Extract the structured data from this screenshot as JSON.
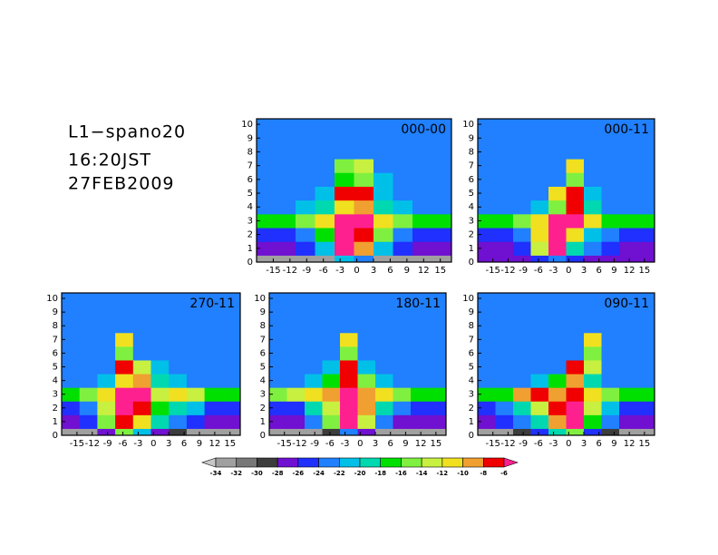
{
  "header": {
    "station": "L1−spano20",
    "time": "16:20JST",
    "date": "27FEB2009"
  },
  "colorbar": {
    "levels": [
      -34,
      -32,
      -30,
      -28,
      -26,
      -24,
      -22,
      -20,
      -18,
      -16,
      -14,
      -12,
      -10,
      -8,
      -6
    ],
    "colors": [
      "#c8c8c8",
      "#a0a0a0",
      "#787878",
      "#3c3c3c",
      "#7010d0",
      "#2030ff",
      "#2080ff",
      "#00c0e8",
      "#00d8b0",
      "#00e000",
      "#80f040",
      "#c8f040",
      "#f0e020",
      "#f0a030",
      "#f00000",
      "#ff2090"
    ]
  },
  "chart_data": [
    {
      "type": "heatmap",
      "title": "000-00",
      "xlim": [
        -18,
        17
      ],
      "ylim": [
        0,
        10.4
      ],
      "xticks": [
        -15,
        -12,
        -9,
        -6,
        -3,
        0,
        3,
        6,
        9,
        12,
        15
      ],
      "yticks": [
        0,
        1,
        2,
        3,
        4,
        5,
        6,
        7,
        8,
        9,
        10
      ],
      "xbins": [
        -18,
        -14.5,
        -11,
        -7.5,
        -4,
        -0.5,
        3,
        6.5,
        10,
        13.5,
        17
      ],
      "ybins": [
        0,
        0.5,
        1.5,
        2.5,
        3.5,
        4.5,
        5.5,
        6.5,
        7.5,
        10.4
      ],
      "z": [
        [
          -33,
          -33,
          -33,
          -33,
          -22,
          -24,
          -33,
          -33,
          -33,
          -33
        ],
        [
          -27,
          -27,
          -26,
          -22,
          -6,
          -10,
          -22,
          -26,
          -27,
          -27
        ],
        [
          -26,
          -26,
          -24,
          -18,
          -5,
          -8,
          -16,
          -24,
          -26,
          -26
        ],
        [
          -18,
          -18,
          -16,
          -12,
          -5,
          -6,
          -12,
          -16,
          -18,
          -18
        ],
        [
          -23,
          -23,
          -22,
          -20,
          -12,
          -10,
          -20,
          -22,
          -23,
          -23
        ],
        [
          -23,
          -23,
          -23,
          -22,
          -8,
          -7,
          -22,
          -23,
          -23,
          -23
        ],
        [
          -23,
          -23,
          -23,
          -23,
          -18,
          -16,
          -22,
          -23,
          -23,
          -23
        ],
        [
          -23,
          -23,
          -23,
          -23,
          -16,
          -14,
          -23,
          -23,
          -23,
          -23
        ],
        [
          -23,
          -23,
          -23,
          -23,
          -23,
          -23,
          -23,
          -23,
          -23,
          -23
        ]
      ]
    },
    {
      "type": "heatmap",
      "title": "000-11",
      "xlim": [
        -18,
        17
      ],
      "ylim": [
        0,
        10.4
      ],
      "xticks": [
        -15,
        -12,
        -9,
        -6,
        -3,
        0,
        3,
        6,
        9,
        12,
        15
      ],
      "yticks": [
        0,
        1,
        2,
        3,
        4,
        5,
        6,
        7,
        8,
        9,
        10
      ],
      "xbins": [
        -18,
        -14.5,
        -11,
        -7.5,
        -4,
        -0.5,
        3,
        6.5,
        10,
        13.5,
        17
      ],
      "ybins": [
        0,
        0.5,
        1.5,
        2.5,
        3.5,
        4.5,
        5.5,
        6.5,
        7.5,
        10.4
      ],
      "z": [
        [
          -28,
          -28,
          -28,
          -26,
          -24,
          -26,
          -28,
          -28,
          -28,
          -28
        ],
        [
          -27,
          -27,
          -26,
          -14,
          -6,
          -20,
          -24,
          -26,
          -27,
          -27
        ],
        [
          -26,
          -26,
          -24,
          -12,
          -6,
          -12,
          -22,
          -24,
          -26,
          -26
        ],
        [
          -18,
          -18,
          -16,
          -12,
          -6,
          -6,
          -12,
          -18,
          -18,
          -18
        ],
        [
          -23,
          -23,
          -23,
          -22,
          -16,
          -8,
          -20,
          -23,
          -23,
          -23
        ],
        [
          -23,
          -23,
          -23,
          -23,
          -12,
          -7,
          -22,
          -23,
          -23,
          -23
        ],
        [
          -23,
          -23,
          -23,
          -23,
          -23,
          -16,
          -23,
          -23,
          -23,
          -23
        ],
        [
          -23,
          -23,
          -23,
          -23,
          -23,
          -12,
          -23,
          -23,
          -23,
          -23
        ],
        [
          -23,
          -23,
          -23,
          -23,
          -23,
          -23,
          -23,
          -23,
          -23,
          -23
        ]
      ]
    },
    {
      "type": "heatmap",
      "title": "270-11",
      "xlim": [
        -18,
        17
      ],
      "ylim": [
        0,
        10.4
      ],
      "xticks": [
        -15,
        -12,
        -9,
        -6,
        -3,
        0,
        3,
        6,
        9,
        12,
        15
      ],
      "yticks": [
        0,
        1,
        2,
        3,
        4,
        5,
        6,
        7,
        8,
        9,
        10
      ],
      "xbins": [
        -18,
        -14.5,
        -11,
        -7.5,
        -4,
        -0.5,
        3,
        6.5,
        10,
        13.5,
        17
      ],
      "ybins": [
        0,
        0.5,
        1.5,
        2.5,
        3.5,
        4.5,
        5.5,
        6.5,
        7.5,
        10.4
      ],
      "z": [
        [
          -33,
          -33,
          -28,
          -16,
          -22,
          -28,
          -30,
          -33,
          -33,
          -33
        ],
        [
          -27,
          -26,
          -16,
          -7,
          -12,
          -20,
          -24,
          -26,
          -27,
          -27
        ],
        [
          -26,
          -24,
          -14,
          -6,
          -8,
          -18,
          -20,
          -22,
          -26,
          -26
        ],
        [
          -18,
          -16,
          -12,
          -6,
          -6,
          -14,
          -12,
          -14,
          -18,
          -18
        ],
        [
          -23,
          -23,
          -22,
          -12,
          -10,
          -20,
          -22,
          -23,
          -23,
          -23
        ],
        [
          -23,
          -23,
          -23,
          -7,
          -14,
          -22,
          -23,
          -23,
          -23,
          -23
        ],
        [
          -23,
          -23,
          -23,
          -16,
          -23,
          -23,
          -23,
          -23,
          -23,
          -23
        ],
        [
          -23,
          -23,
          -23,
          -12,
          -23,
          -23,
          -23,
          -23,
          -23,
          -23
        ],
        [
          -23,
          -23,
          -23,
          -23,
          -23,
          -23,
          -23,
          -23,
          -23,
          -23
        ]
      ]
    },
    {
      "type": "heatmap",
      "title": "180-11",
      "xlim": [
        -18,
        17
      ],
      "ylim": [
        0,
        10.4
      ],
      "xticks": [
        -15,
        -12,
        -9,
        -6,
        -3,
        0,
        3,
        6,
        9,
        12,
        15
      ],
      "yticks": [
        0,
        1,
        2,
        3,
        4,
        5,
        6,
        7,
        8,
        9,
        10
      ],
      "xbins": [
        -18,
        -14.5,
        -11,
        -7.5,
        -4,
        -0.5,
        3,
        6.5,
        10,
        13.5,
        17
      ],
      "ybins": [
        0,
        0.5,
        1.5,
        2.5,
        3.5,
        4.5,
        5.5,
        6.5,
        7.5,
        10.4
      ],
      "z": [
        [
          -33,
          -33,
          -33,
          -30,
          -24,
          -28,
          -33,
          -33,
          -33,
          -33
        ],
        [
          -27,
          -27,
          -24,
          -16,
          -6,
          -14,
          -24,
          -27,
          -27,
          -27
        ],
        [
          -26,
          -26,
          -20,
          -14,
          -6,
          -10,
          -20,
          -24,
          -26,
          -26
        ],
        [
          -16,
          -14,
          -12,
          -10,
          -6,
          -10,
          -12,
          -16,
          -18,
          -18
        ],
        [
          -23,
          -23,
          -22,
          -18,
          -8,
          -16,
          -22,
          -23,
          -23,
          -23
        ],
        [
          -23,
          -23,
          -23,
          -22,
          -7,
          -22,
          -23,
          -23,
          -23,
          -23
        ],
        [
          -23,
          -23,
          -23,
          -23,
          -16,
          -23,
          -23,
          -23,
          -23,
          -23
        ],
        [
          -23,
          -23,
          -23,
          -23,
          -12,
          -23,
          -23,
          -23,
          -23,
          -23
        ],
        [
          -23,
          -23,
          -23,
          -23,
          -23,
          -23,
          -23,
          -23,
          -23,
          -23
        ]
      ]
    },
    {
      "type": "heatmap",
      "title": "090-11",
      "xlim": [
        -18,
        17
      ],
      "ylim": [
        0,
        10.4
      ],
      "xticks": [
        -15,
        -12,
        -9,
        -6,
        -3,
        0,
        3,
        6,
        9,
        12,
        15
      ],
      "yticks": [
        0,
        1,
        2,
        3,
        4,
        5,
        6,
        7,
        8,
        9,
        10
      ],
      "xbins": [
        -18,
        -14.5,
        -11,
        -7.5,
        -4,
        -0.5,
        3,
        6.5,
        10,
        13.5,
        17
      ],
      "ybins": [
        0,
        0.5,
        1.5,
        2.5,
        3.5,
        4.5,
        5.5,
        6.5,
        7.5,
        10.4
      ],
      "z": [
        [
          -33,
          -33,
          -30,
          -26,
          -20,
          -16,
          -26,
          -30,
          -33,
          -33
        ],
        [
          -27,
          -26,
          -24,
          -20,
          -10,
          -6,
          -18,
          -24,
          -27,
          -27
        ],
        [
          -26,
          -24,
          -20,
          -14,
          -8,
          -6,
          -14,
          -22,
          -26,
          -26
        ],
        [
          -18,
          -18,
          -10,
          -8,
          -10,
          -8,
          -12,
          -16,
          -18,
          -18
        ],
        [
          -23,
          -23,
          -23,
          -22,
          -18,
          -10,
          -20,
          -23,
          -23,
          -23
        ],
        [
          -23,
          -23,
          -23,
          -23,
          -23,
          -7,
          -14,
          -23,
          -23,
          -23
        ],
        [
          -23,
          -23,
          -23,
          -23,
          -23,
          -23,
          -16,
          -23,
          -23,
          -23
        ],
        [
          -23,
          -23,
          -23,
          -23,
          -23,
          -23,
          -12,
          -23,
          -23,
          -23
        ],
        [
          -23,
          -23,
          -23,
          -23,
          -23,
          -23,
          -23,
          -23,
          -23,
          -23
        ]
      ]
    }
  ]
}
